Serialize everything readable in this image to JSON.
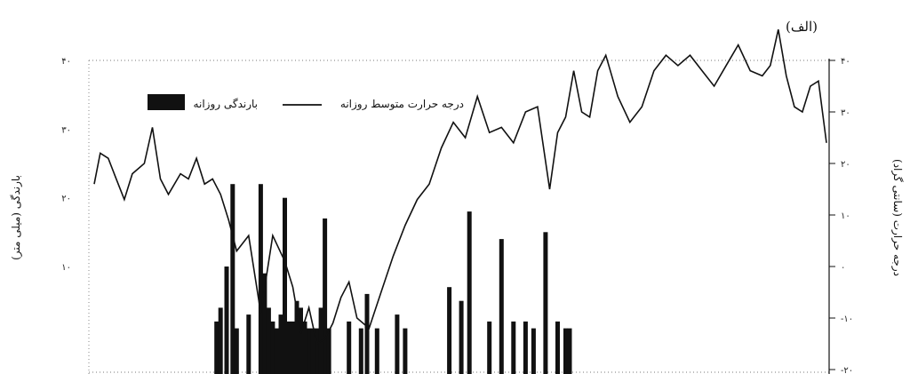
{
  "panel_label": "(الف)",
  "chart_data": {
    "type": "bar+line",
    "legend": {
      "placement": "top-left",
      "items": [
        {
          "name": "بارندگی روزانه",
          "kind": "bar"
        },
        {
          "name": "درجه حرارت متوسط روزانه",
          "kind": "line"
        }
      ]
    },
    "left_axis": {
      "label": "بارندگی (میلی متر)",
      "ticks": [
        "۴۰",
        "۳۰",
        "۲۰",
        "۱۰"
      ],
      "tick_values": [
        40,
        30,
        20,
        10
      ],
      "range": [
        -5,
        40
      ]
    },
    "right_axis": {
      "label": "درجه حرارت (سانتی گراد)",
      "ticks": [
        "۴۰",
        "۳۰",
        "۲۰",
        "۱۰",
        "۰",
        "-۱۰",
        "-۲۰"
      ],
      "tick_values": [
        40,
        30,
        20,
        10,
        0,
        -10,
        -20
      ],
      "range": [
        -20,
        40
      ]
    },
    "grid": "dotted frame only",
    "temperature_series": {
      "name": "درجه حرارت متوسط روزانه",
      "color": "#111111",
      "x": [
        1,
        4,
        8,
        12,
        16,
        20,
        26,
        30,
        34,
        38,
        44,
        48,
        52,
        56,
        60,
        64,
        68,
        72,
        78,
        84,
        90,
        96,
        100,
        104,
        108,
        112,
        116,
        120,
        124,
        128,
        132,
        138,
        144,
        150,
        156,
        162,
        168,
        174,
        180,
        186,
        192,
        198,
        204,
        210,
        216,
        222,
        228,
        232,
        236,
        240,
        244,
        248,
        252,
        256,
        262,
        268,
        274,
        280,
        286,
        292,
        298,
        304,
        310,
        316,
        322,
        328,
        334,
        338,
        342,
        346,
        350,
        354,
        358,
        362,
        366
      ],
      "y": [
        16,
        22,
        21,
        17,
        13,
        18,
        20,
        27,
        17,
        14,
        18,
        17,
        21,
        16,
        17,
        14,
        9,
        3,
        6,
        -9,
        6,
        1,
        -4,
        -13,
        -8,
        -15,
        -14,
        -11,
        -6,
        -3,
        -10,
        -12,
        -5,
        2,
        8,
        13,
        16,
        23,
        28,
        25,
        33,
        26,
        27,
        24,
        30,
        31,
        15,
        26,
        29,
        38,
        30,
        29,
        38,
        41,
        33,
        28,
        31,
        38,
        41,
        39,
        41,
        38,
        35,
        39,
        43,
        38,
        37,
        39,
        46,
        37,
        31,
        30,
        35,
        36,
        24
      ],
      "y_axis": "right"
    },
    "precipitation_series": {
      "name": "بارندگی روزانه",
      "color": "#111111",
      "x": [
        62,
        64,
        67,
        70,
        72,
        78,
        84,
        86,
        88,
        90,
        92,
        94,
        96,
        98,
        100,
        102,
        104,
        106,
        108,
        110,
        112,
        114,
        116,
        118,
        128,
        134,
        137,
        142,
        152,
        156,
        178,
        184,
        188,
        198,
        204,
        210,
        216,
        220,
        226,
        232,
        236,
        238
      ],
      "values": [
        2,
        4,
        10,
        22,
        1,
        3,
        22,
        9,
        4,
        2,
        1,
        3,
        20,
        2,
        2,
        5,
        4,
        2,
        1,
        1,
        1,
        4,
        17,
        1,
        2,
        1,
        6,
        1,
        3,
        1,
        7,
        5,
        18,
        2,
        14,
        2,
        2,
        1,
        15,
        2,
        1,
        1
      ],
      "y_axis": "left"
    }
  }
}
